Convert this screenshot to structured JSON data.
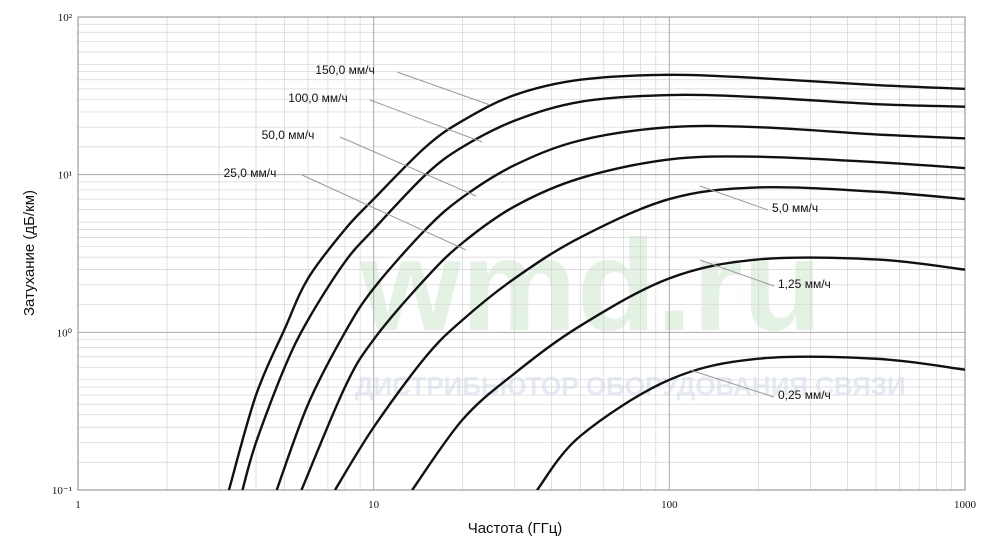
{
  "chart_data": {
    "type": "line",
    "xlabel": "Частота (ГГц)",
    "ylabel": "Затухание (дБ/км)",
    "xscale": "log",
    "yscale": "log",
    "grid": true,
    "minor_grid": true,
    "xlim": [
      1,
      1000
    ],
    "xticks": [
      1,
      10,
      100,
      1000
    ],
    "ylim": [
      0.1,
      100
    ],
    "yticks": [
      {
        "value": 0.1,
        "label": "10⁻¹"
      },
      {
        "value": 1,
        "label": "10⁰"
      },
      {
        "value": 10,
        "label": "10¹"
      },
      {
        "value": 100,
        "label": "10²"
      }
    ],
    "watermark": {
      "logo": "wmd.ru",
      "tagline": "ДИСТРИБЬЮТОР ОБОРУДОВАНИЯ СВЯЗИ"
    },
    "series": [
      {
        "name": "150,0 мм/ч",
        "color": "#111111",
        "x": [
          3.24,
          4,
          5,
          6,
          8,
          10,
          15,
          20,
          30,
          50,
          100,
          200,
          500,
          1000
        ],
        "values": [
          0.1,
          0.4,
          1.05,
          2.2,
          4.5,
          7,
          15,
          22,
          32,
          40,
          43,
          41,
          37,
          35
        ]
      },
      {
        "name": "100,0 мм/ч",
        "color": "#111111",
        "x": [
          3.6,
          4,
          5,
          6,
          8,
          10,
          15,
          20,
          30,
          50,
          100,
          200,
          500,
          1000
        ],
        "values": [
          0.1,
          0.2,
          0.6,
          1.2,
          2.8,
          4.5,
          10,
          15,
          22,
          29,
          32,
          31,
          28,
          27
        ]
      },
      {
        "name": "50,0 мм/ч",
        "color": "#111111",
        "x": [
          4.7,
          6,
          8,
          10,
          15,
          20,
          30,
          50,
          100,
          200,
          500,
          1000
        ],
        "values": [
          0.1,
          0.35,
          1,
          1.9,
          4.5,
          7.2,
          11.5,
          16.5,
          20,
          20,
          18,
          17
        ]
      },
      {
        "name": "25,0 мм/ч",
        "color": "#111111",
        "x": [
          5.7,
          8,
          10,
          15,
          20,
          30,
          50,
          100,
          200,
          500,
          1000
        ],
        "values": [
          0.1,
          0.45,
          0.9,
          2.2,
          3.7,
          6.3,
          9.5,
          12.5,
          13,
          12,
          11
        ]
      },
      {
        "name": "5,0 мм/ч",
        "color": "#111111",
        "x": [
          7.4,
          10,
          15,
          20,
          30,
          50,
          100,
          200,
          500,
          1000
        ],
        "values": [
          0.1,
          0.25,
          0.7,
          1.2,
          2.2,
          4,
          7,
          8.3,
          7.8,
          7
        ]
      },
      {
        "name": "1,25 мм/ч",
        "color": "#111111",
        "x": [
          13.5,
          20,
          30,
          50,
          100,
          200,
          500,
          1000
        ],
        "values": [
          0.1,
          0.28,
          0.55,
          1.1,
          2.2,
          2.9,
          2.9,
          2.5
        ]
      },
      {
        "name": "0,25 мм/ч",
        "color": "#111111",
        "x": [
          35.7,
          50,
          100,
          200,
          500,
          1000
        ],
        "values": [
          0.1,
          0.22,
          0.5,
          0.68,
          0.68,
          0.58
        ]
      }
    ]
  }
}
